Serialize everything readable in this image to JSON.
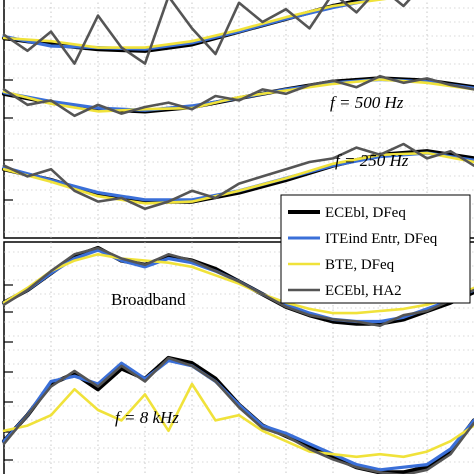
{
  "chart_data": [
    {
      "type": "line",
      "panel": "top",
      "x_description": "normalized horizontal position",
      "y_description": "stacked traces (arbitrary units)",
      "ylim": [
        -1.3,
        1.3
      ],
      "traces": [
        {
          "label": "",
          "series": [
            {
              "name": "ECEbl, DFeq",
              "color": "#000000",
              "x": [
                0,
                0.1,
                0.2,
                0.3,
                0.4,
                0.5,
                0.6,
                0.7,
                0.8,
                0.9,
                1
              ],
              "y": [
                -0.5,
                -0.7,
                -0.85,
                -0.9,
                -0.7,
                -0.3,
                0.1,
                0.5,
                0.8,
                0.95,
                1.0
              ]
            },
            {
              "name": "ITEind Entr, DFeq",
              "color": "#3a6fd8",
              "x": [
                0,
                0.1,
                0.2,
                0.3,
                0.4,
                0.5,
                0.6,
                0.7,
                0.8,
                0.9,
                1
              ],
              "y": [
                -0.45,
                -0.75,
                -0.8,
                -0.85,
                -0.65,
                -0.3,
                0.1,
                0.45,
                0.75,
                0.9,
                1.0
              ]
            },
            {
              "name": "BTE, DFeq",
              "color": "#f0e23a",
              "x": [
                0,
                0.1,
                0.2,
                0.3,
                0.4,
                0.5,
                0.6,
                0.7,
                0.8,
                0.9,
                1
              ],
              "y": [
                -0.5,
                -0.6,
                -0.8,
                -0.8,
                -0.6,
                -0.25,
                0.15,
                0.5,
                0.7,
                0.9,
                1.0
              ]
            },
            {
              "name": "ECEbl, HA2",
              "color": "#555555",
              "x": [
                0,
                0.05,
                0.1,
                0.15,
                0.2,
                0.25,
                0.3,
                0.35,
                0.4,
                0.45,
                0.5,
                0.55,
                0.6,
                0.65,
                0.7,
                0.75,
                0.8,
                0.85,
                0.9,
                0.95,
                1
              ],
              "y": [
                -0.4,
                -0.9,
                -0.3,
                -1.3,
                0.2,
                -0.8,
                -1.3,
                0.8,
                -0.2,
                -1.0,
                0.6,
                0.0,
                0.4,
                -0.2,
                0.9,
                0.3,
                1.1,
                0.5,
                1.3,
                0.8,
                1.2
              ]
            }
          ]
        },
        {
          "label": "f = 500 Hz",
          "series": [
            {
              "name": "ECEbl, DFeq",
              "color": "#000000",
              "x": [
                0,
                0.1,
                0.2,
                0.3,
                0.4,
                0.5,
                0.6,
                0.7,
                0.8,
                0.9,
                1
              ],
              "y": [
                0.1,
                -0.3,
                -0.6,
                -0.7,
                -0.5,
                -0.1,
                0.3,
                0.65,
                0.8,
                0.7,
                0.4
              ]
            },
            {
              "name": "ITEind Entr, DFeq",
              "color": "#3a6fd8",
              "x": [
                0,
                0.1,
                0.2,
                0.3,
                0.4,
                0.5,
                0.6,
                0.7,
                0.8,
                0.9,
                1
              ],
              "y": [
                0.15,
                -0.25,
                -0.55,
                -0.65,
                -0.45,
                -0.1,
                0.3,
                0.6,
                0.75,
                0.65,
                0.35
              ]
            },
            {
              "name": "BTE, DFeq",
              "color": "#f0e23a",
              "x": [
                0,
                0.1,
                0.2,
                0.3,
                0.4,
                0.5,
                0.6,
                0.7,
                0.8,
                0.9,
                1
              ],
              "y": [
                0.2,
                -0.35,
                -0.7,
                -0.6,
                -0.55,
                -0.05,
                0.25,
                0.55,
                0.75,
                0.6,
                0.3
              ]
            },
            {
              "name": "ECEbl, HA2",
              "color": "#555555",
              "x": [
                0,
                0.05,
                0.1,
                0.15,
                0.2,
                0.25,
                0.3,
                0.35,
                0.4,
                0.45,
                0.5,
                0.55,
                0.6,
                0.65,
                0.7,
                0.75,
                0.8,
                0.85,
                0.9,
                0.95,
                1
              ],
              "y": [
                0.3,
                -0.4,
                -0.2,
                -0.9,
                -0.4,
                -0.8,
                -0.5,
                -0.3,
                -0.6,
                0.0,
                -0.2,
                0.3,
                0.1,
                0.5,
                0.7,
                0.4,
                0.9,
                0.6,
                0.8,
                0.5,
                0.3
              ]
            }
          ]
        },
        {
          "label": "f = 250 Hz",
          "series": [
            {
              "name": "ECEbl, DFeq",
              "color": "#000000",
              "x": [
                0,
                0.1,
                0.2,
                0.3,
                0.4,
                0.5,
                0.6,
                0.7,
                0.8,
                0.9,
                1
              ],
              "y": [
                0.3,
                0.0,
                -0.4,
                -0.6,
                -0.6,
                -0.35,
                0.0,
                0.4,
                0.7,
                0.8,
                0.6
              ]
            },
            {
              "name": "ITEind Entr, DFeq",
              "color": "#3a6fd8",
              "x": [
                0,
                0.1,
                0.2,
                0.3,
                0.4,
                0.5,
                0.6,
                0.7,
                0.8,
                0.9,
                1
              ],
              "y": [
                0.35,
                0.0,
                -0.35,
                -0.55,
                -0.55,
                -0.3,
                0.05,
                0.4,
                0.65,
                0.75,
                0.55
              ]
            },
            {
              "name": "BTE, DFeq",
              "color": "#f0e23a",
              "x": [
                0,
                0.1,
                0.2,
                0.3,
                0.4,
                0.5,
                0.6,
                0.7,
                0.8,
                0.9,
                1
              ],
              "y": [
                0.3,
                -0.05,
                -0.45,
                -0.65,
                -0.6,
                -0.3,
                0.05,
                0.45,
                0.7,
                0.75,
                0.5
              ]
            },
            {
              "name": "ECEbl, HA2",
              "color": "#555555",
              "x": [
                0,
                0.05,
                0.1,
                0.15,
                0.2,
                0.25,
                0.3,
                0.35,
                0.4,
                0.45,
                0.5,
                0.55,
                0.6,
                0.65,
                0.7,
                0.75,
                0.8,
                0.85,
                0.9,
                0.95,
                1
              ],
              "y": [
                0.4,
                0.1,
                0.3,
                -0.3,
                -0.6,
                -0.5,
                -0.8,
                -0.6,
                -0.3,
                -0.5,
                -0.1,
                0.1,
                0.3,
                0.5,
                0.6,
                0.9,
                0.7,
                1.0,
                0.6,
                0.8,
                0.4
              ]
            }
          ]
        }
      ]
    },
    {
      "type": "line",
      "panel": "bottom",
      "x_description": "normalized horizontal position",
      "y_description": "stacked traces (arbitrary units)",
      "ylim": [
        -1.3,
        1.3
      ],
      "legend": {
        "placement": "top-right of bottom-left region"
      },
      "traces": [
        {
          "label": "Broadband",
          "series": [
            {
              "name": "ECEbl, DFeq",
              "color": "#000000",
              "x": [
                0,
                0.05,
                0.1,
                0.15,
                0.2,
                0.25,
                0.3,
                0.35,
                0.4,
                0.45,
                0.5,
                0.55,
                0.6,
                0.65,
                0.7,
                0.75,
                0.8,
                0.85,
                0.9,
                0.95,
                1
              ],
              "y": [
                -0.3,
                0.0,
                0.4,
                0.8,
                1.0,
                0.7,
                0.6,
                0.8,
                0.7,
                0.5,
                0.2,
                -0.1,
                -0.4,
                -0.6,
                -0.75,
                -0.8,
                -0.8,
                -0.7,
                -0.5,
                -0.3,
                -0.05
              ]
            },
            {
              "name": "ITEind Entr, DFeq",
              "color": "#3a6fd8",
              "x": [
                0,
                0.05,
                0.1,
                0.15,
                0.2,
                0.25,
                0.3,
                0.35,
                0.4,
                0.45,
                0.5,
                0.55,
                0.6,
                0.65,
                0.7,
                0.75,
                0.8,
                0.85,
                0.9,
                0.95,
                1
              ],
              "y": [
                -0.3,
                0.0,
                0.4,
                0.75,
                0.95,
                0.7,
                0.55,
                0.75,
                0.65,
                0.45,
                0.2,
                -0.1,
                -0.35,
                -0.55,
                -0.7,
                -0.75,
                -0.75,
                -0.65,
                -0.45,
                -0.25,
                0.0
              ]
            },
            {
              "name": "BTE, DFeq",
              "color": "#f0e23a",
              "x": [
                0,
                0.05,
                0.1,
                0.15,
                0.2,
                0.25,
                0.3,
                0.35,
                0.4,
                0.45,
                0.5,
                0.55,
                0.6,
                0.65,
                0.7,
                0.75,
                0.8,
                0.85,
                0.9,
                0.95,
                1
              ],
              "y": [
                -0.3,
                0.05,
                0.45,
                0.7,
                0.85,
                0.75,
                0.7,
                0.65,
                0.55,
                0.35,
                0.15,
                -0.1,
                -0.3,
                -0.45,
                -0.55,
                -0.55,
                -0.5,
                -0.45,
                -0.35,
                -0.2,
                0.05
              ]
            },
            {
              "name": "ECEbl, HA2",
              "color": "#555555",
              "x": [
                0,
                0.05,
                0.1,
                0.15,
                0.2,
                0.25,
                0.3,
                0.35,
                0.4,
                0.45,
                0.5,
                0.55,
                0.6,
                0.65,
                0.7,
                0.75,
                0.8,
                0.85,
                0.9,
                0.95,
                1
              ],
              "y": [
                -0.35,
                0.0,
                0.45,
                0.85,
                1.0,
                0.75,
                0.6,
                0.85,
                0.7,
                0.45,
                0.2,
                -0.1,
                -0.4,
                -0.6,
                -0.7,
                -0.75,
                -0.85,
                -0.6,
                -0.5,
                -0.25,
                0.0
              ]
            }
          ]
        },
        {
          "label": "f = 8 kHz",
          "series": [
            {
              "name": "ECEbl, DFeq",
              "color": "#000000",
              "x": [
                0,
                0.05,
                0.1,
                0.15,
                0.2,
                0.25,
                0.3,
                0.35,
                0.4,
                0.45,
                0.5,
                0.55,
                0.6,
                0.65,
                0.7,
                0.75,
                0.8,
                0.85,
                0.9,
                0.95,
                1
              ],
              "y": [
                -0.6,
                -0.1,
                0.5,
                0.7,
                0.4,
                0.8,
                0.6,
                1.0,
                0.9,
                0.6,
                0.1,
                -0.3,
                -0.5,
                -0.7,
                -0.9,
                -1.1,
                -1.2,
                -1.2,
                -1.1,
                -0.8,
                -0.2
              ]
            },
            {
              "name": "ITEind Entr, DFeq",
              "color": "#3a6fd8",
              "x": [
                0,
                0.05,
                0.1,
                0.15,
                0.2,
                0.25,
                0.3,
                0.35,
                0.4,
                0.45,
                0.5,
                0.55,
                0.6,
                0.65,
                0.7,
                0.75,
                0.8,
                0.85,
                0.9,
                0.95,
                1
              ],
              "y": [
                -0.6,
                -0.1,
                0.55,
                0.65,
                0.5,
                0.9,
                0.6,
                0.95,
                0.85,
                0.55,
                0.1,
                -0.3,
                -0.45,
                -0.65,
                -0.85,
                -1.05,
                -1.15,
                -1.1,
                -1.05,
                -0.75,
                -0.2
              ]
            },
            {
              "name": "BTE, DFeq",
              "color": "#f0e23a",
              "x": [
                0,
                0.05,
                0.1,
                0.15,
                0.2,
                0.25,
                0.3,
                0.35,
                0.4,
                0.45,
                0.5,
                0.55,
                0.6,
                0.65,
                0.7,
                0.75,
                0.8,
                0.85,
                0.9,
                0.95,
                1
              ],
              "y": [
                -0.4,
                -0.3,
                -0.1,
                0.4,
                0.0,
                -0.2,
                0.3,
                -0.4,
                0.5,
                -0.2,
                -0.1,
                -0.4,
                -0.6,
                -0.8,
                -0.85,
                -0.9,
                -0.85,
                -0.9,
                -0.8,
                -0.6,
                -0.3
              ]
            },
            {
              "name": "ECEbl, HA2",
              "color": "#555555",
              "x": [
                0,
                0.05,
                0.1,
                0.15,
                0.2,
                0.25,
                0.3,
                0.35,
                0.4,
                0.45,
                0.5,
                0.55,
                0.6,
                0.65,
                0.7,
                0.75,
                0.8,
                0.85,
                0.9,
                0.95,
                1
              ],
              "y": [
                -0.65,
                -0.1,
                0.45,
                0.75,
                0.45,
                0.85,
                0.55,
                1.0,
                0.85,
                0.55,
                0.05,
                -0.35,
                -0.5,
                -0.75,
                -0.95,
                -1.1,
                -1.2,
                -1.25,
                -1.15,
                -0.85,
                -0.25
              ]
            }
          ]
        }
      ]
    }
  ],
  "annotations": {
    "f500": "f = 500 Hz",
    "f250": "f = 250 Hz",
    "broadband": "Broadband",
    "f8k": "f = 8 kHz"
  },
  "legend": [
    {
      "label": "ECEbl, DFeq",
      "color": "#000000",
      "width": 4
    },
    {
      "label": "ITEind Entr, DFeq",
      "color": "#3a6fd8",
      "width": 3
    },
    {
      "label": "BTE, DFeq",
      "color": "#f0e23a",
      "width": 2.5
    },
    {
      "label": "ECEbl, HA2",
      "color": "#555555",
      "width": 2.5
    }
  ]
}
